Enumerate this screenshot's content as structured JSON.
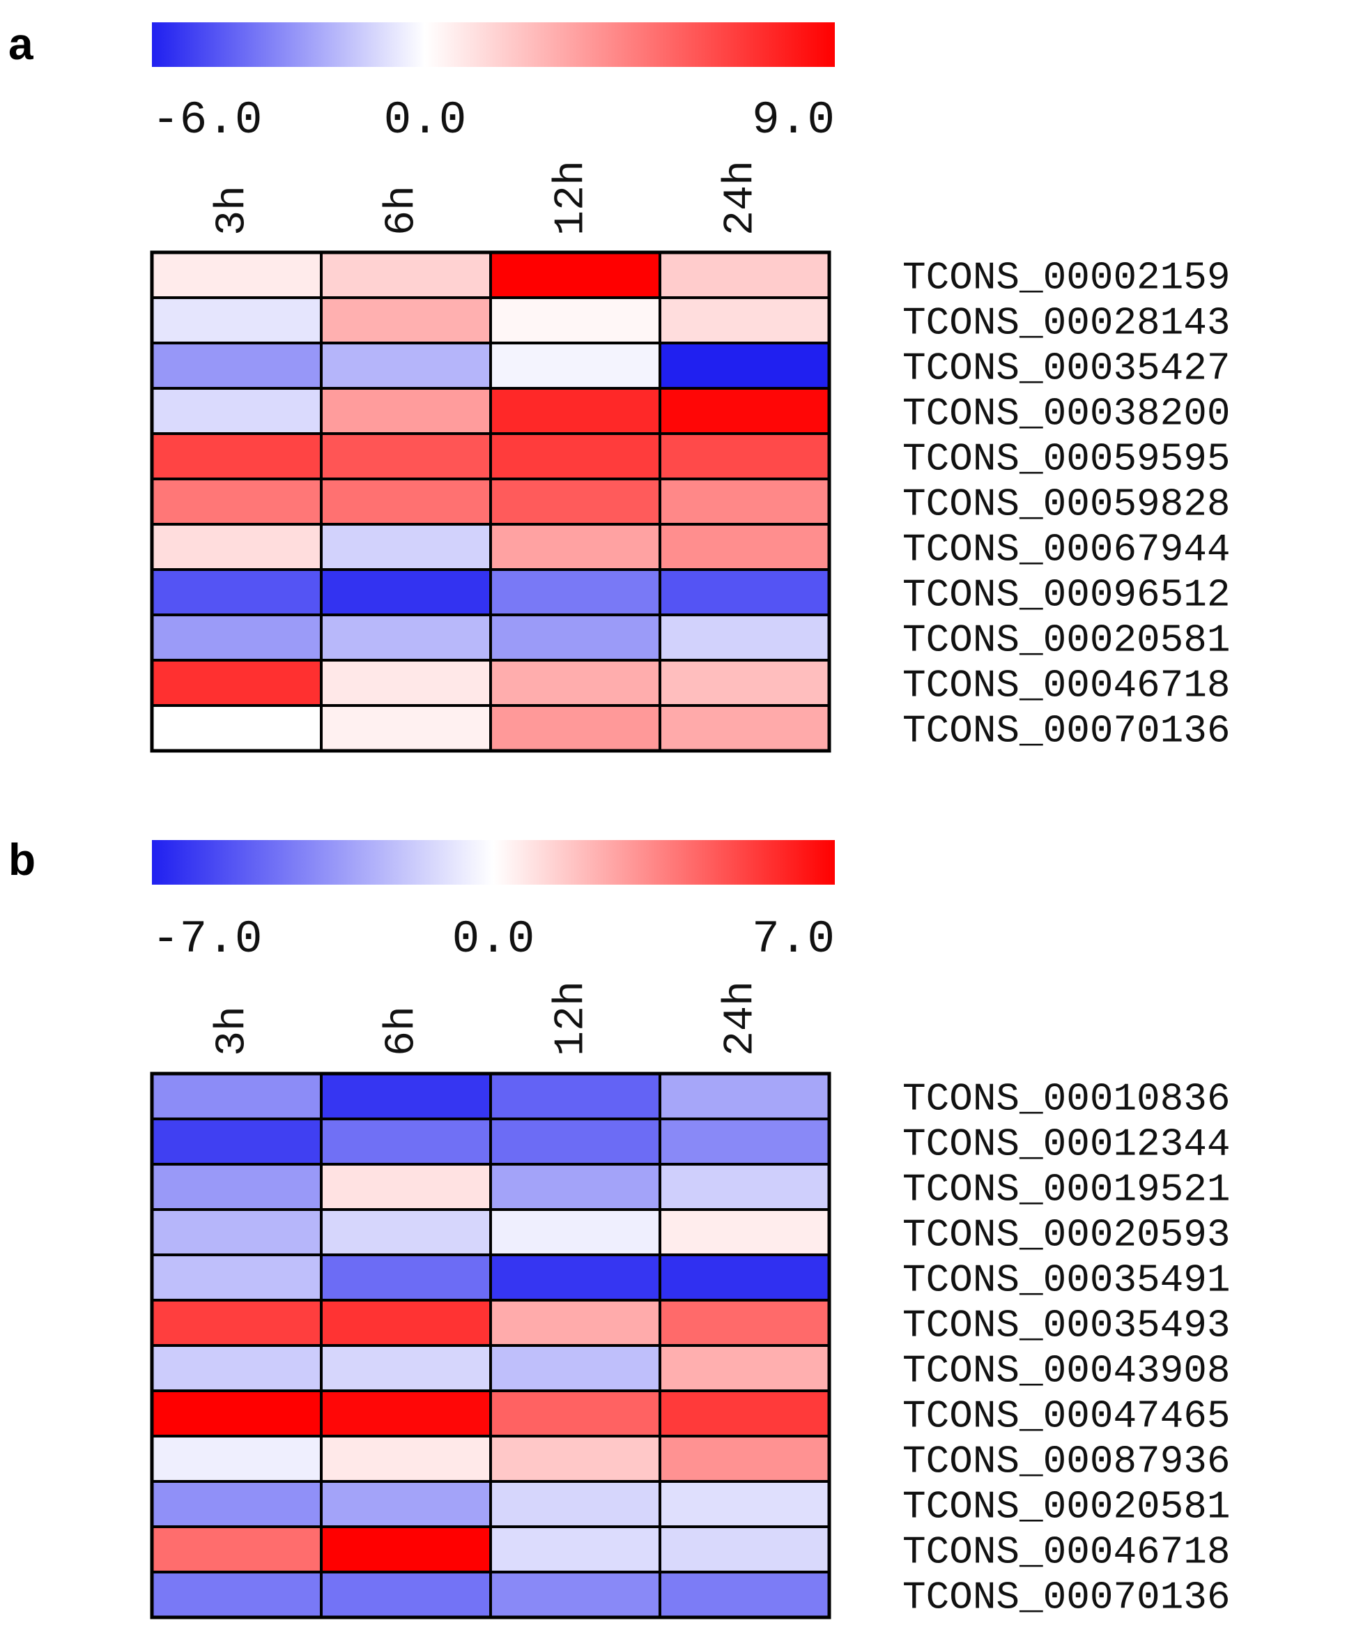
{
  "chart_data": [
    {
      "type": "heatmap",
      "panel_label": "a",
      "colorbar": {
        "min": -6.0,
        "mid": 0.0,
        "max": 9.0,
        "tick_labels": [
          "-6.0",
          "0.0",
          "9.0"
        ],
        "low_color": "#2020f0",
        "mid_color": "#ffffff",
        "high_color": "#ff0000"
      },
      "columns": [
        "3h",
        "6h",
        "12h",
        "24h"
      ],
      "rows": [
        "TCONS_00002159",
        "TCONS_00028143",
        "TCONS_00035427",
        "TCONS_00038200",
        "TCONS_00059595",
        "TCONS_00059828",
        "TCONS_00067944",
        "TCONS_00096512",
        "TCONS_00020581",
        "TCONS_00046718",
        "TCONS_00070136"
      ],
      "values": [
        [
          0.7,
          1.6,
          9.0,
          1.8
        ],
        [
          -0.7,
          2.8,
          0.3,
          1.2
        ],
        [
          -2.8,
          -2.0,
          -0.3,
          -6.0
        ],
        [
          -1.0,
          3.5,
          7.6,
          8.8
        ],
        [
          6.6,
          6.0,
          6.9,
          6.4
        ],
        [
          4.8,
          5.0,
          5.8,
          4.2
        ],
        [
          1.2,
          -1.2,
          3.3,
          4.0
        ],
        [
          -4.6,
          -5.5,
          -3.6,
          -4.6
        ],
        [
          -2.7,
          -1.9,
          -2.7,
          -1.2
        ],
        [
          7.3,
          0.8,
          2.9,
          2.3
        ],
        [
          0.0,
          0.5,
          3.6,
          3.0
        ]
      ]
    },
    {
      "type": "heatmap",
      "panel_label": "b",
      "colorbar": {
        "min": -7.0,
        "mid": 0.0,
        "max": 7.0,
        "tick_labels": [
          "-7.0",
          "0.0",
          "7.0"
        ],
        "low_color": "#2020f0",
        "mid_color": "#ffffff",
        "high_color": "#ff0000"
      },
      "columns": [
        "3h",
        "6h",
        "12h",
        "24h"
      ],
      "rows": [
        "TCONS_00010836",
        "TCONS_00012344",
        "TCONS_00019521",
        "TCONS_00020593",
        "TCONS_00035491",
        "TCONS_00035493",
        "TCONS_00043908",
        "TCONS_00047465",
        "TCONS_00087936",
        "TCONS_00020581",
        "TCONS_00046718",
        "TCONS_00070136"
      ],
      "values": [
        [
          -3.6,
          -6.3,
          -4.9,
          -2.8
        ],
        [
          -6.0,
          -4.5,
          -4.6,
          -3.7
        ],
        [
          -3.2,
          0.8,
          -2.9,
          -1.5
        ],
        [
          -2.3,
          -1.3,
          -0.5,
          0.5
        ],
        [
          -2.0,
          -4.6,
          -6.3,
          -6.5
        ],
        [
          5.3,
          5.6,
          2.3,
          4.1
        ],
        [
          -1.6,
          -1.3,
          -2.0,
          2.2
        ],
        [
          7.0,
          6.8,
          4.3,
          5.4
        ],
        [
          -0.5,
          0.6,
          1.5,
          3.0
        ],
        [
          -3.5,
          -2.9,
          -1.3,
          -1.0
        ],
        [
          4.0,
          7.0,
          -1.1,
          -1.2
        ],
        [
          -4.2,
          -4.4,
          -3.7,
          -4.1
        ]
      ]
    }
  ]
}
